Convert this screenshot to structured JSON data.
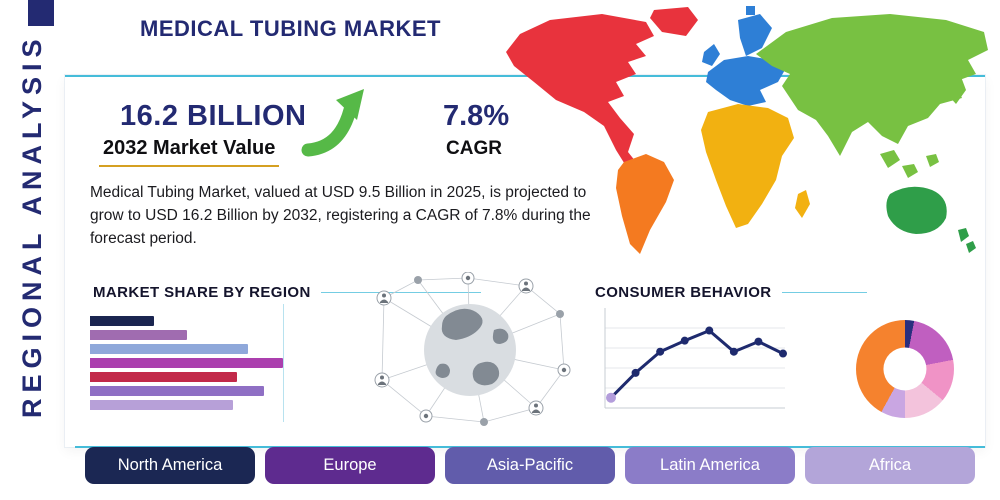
{
  "header": {
    "title": "MEDICAL TUBING MARKET",
    "side_label": "REGIONAL ANALYSIS"
  },
  "stats": {
    "value": "16.2 BILLION",
    "value_label": "2032 Market Value",
    "cagr": "7.8%",
    "cagr_label": "CAGR"
  },
  "description": "Medical Tubing Market, valued at USD 9.5 Billion in 2025, is projected to grow to USD 16.2 Billion by 2032, registering a CAGR of 7.8% during the forecast period.",
  "sections": {
    "market_share_title": "MARKET SHARE BY REGION",
    "consumer_behavior_title": "CONSUMER BEHAVIOR"
  },
  "regions": [
    {
      "label": "North America",
      "color": "#1b2753"
    },
    {
      "label": "Europe",
      "color": "#5e2b8f"
    },
    {
      "label": "Asia-Pacific",
      "color": "#615cab"
    },
    {
      "label": "Latin America",
      "color": "#8b7cc8"
    },
    {
      "label": "Africa",
      "color": "#b3a5d9"
    }
  ],
  "chart_data": [
    {
      "type": "bar",
      "title": "MARKET SHARE BY REGION",
      "orientation": "horizontal",
      "categories": [
        "bar-1",
        "bar-2",
        "bar-3",
        "bar-4",
        "bar-5",
        "bar-6",
        "bar-7"
      ],
      "values": [
        33,
        50,
        82,
        100,
        76,
        90,
        74
      ],
      "xlim": [
        0,
        100
      ],
      "colors": [
        "#1a2550",
        "#a06cb0",
        "#8fa8da",
        "#ab3fae",
        "#c22a4a",
        "#8f6fc4",
        "#b7a0d8"
      ],
      "grid": "single vertical gridline at max value"
    },
    {
      "type": "line",
      "title": "CONSUMER BEHAVIOR",
      "x": [
        1,
        2,
        3,
        4,
        5,
        6,
        7,
        8
      ],
      "values": [
        0.9,
        3.6,
        5.9,
        7.1,
        8.2,
        5.9,
        7.0,
        5.7
      ],
      "ylim": [
        0,
        10
      ],
      "line_color": "#1e2a6e",
      "start_marker_color": "#b39ddb",
      "grid": true
    },
    {
      "type": "pie",
      "title": "",
      "donut_hole": 0.45,
      "slices": [
        {
          "value": 3,
          "color": "#2a2f7e"
        },
        {
          "value": 19,
          "color": "#c05fc0"
        },
        {
          "value": 14,
          "color": "#f093c6"
        },
        {
          "value": 14,
          "color": "#f3c3dc"
        },
        {
          "value": 8,
          "color": "#c9a6e2"
        },
        {
          "value": 42,
          "color": "#f5822e"
        }
      ]
    }
  ],
  "map": {
    "continent_colors": {
      "north-america": "#e8333d",
      "greenland": "#e8333d",
      "south-america": "#f47a20",
      "europe": "#2e7fd6",
      "africa": "#f2b111",
      "asia": "#78c142",
      "australia": "#2f9e49"
    }
  },
  "accent": {
    "teal_line": "#45bcd9",
    "navy": "#232a72",
    "underline_gold": "#d5a021",
    "arrow_green": "#56b947"
  }
}
